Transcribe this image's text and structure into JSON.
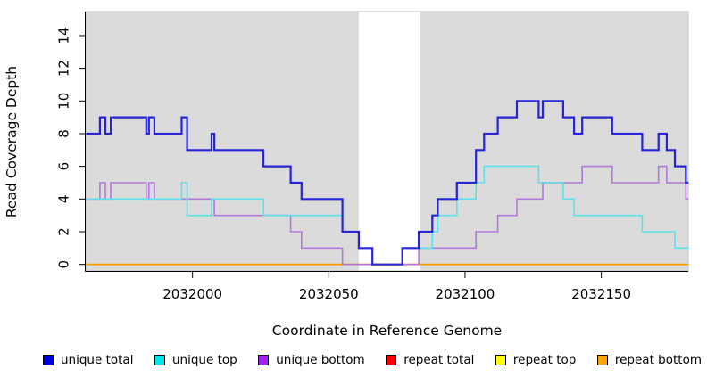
{
  "figure": {
    "title": ""
  },
  "chart_data": {
    "type": "line",
    "subtype": "step-after",
    "title": "",
    "xlabel": "Coordinate in Reference Genome",
    "ylabel": "Read Coverage Depth",
    "xlim": [
      2031960.8,
      2032181.9
    ],
    "ylim": [
      -0.4,
      15.47
    ],
    "x_ticks": [
      2032000,
      2032050,
      2032100,
      2032150
    ],
    "y_ticks": [
      0,
      2,
      4,
      6,
      8,
      10,
      12,
      14
    ],
    "x_end": 2032182,
    "grid": false,
    "legend_position": "bottom",
    "plot_bg": "#dbdbdb",
    "gap_region": {
      "x0": 2032061,
      "x1": 2032083.6,
      "color": "#ffffff",
      "meaning": "no-coverage gap band"
    },
    "draw_order": [
      "repeat_total",
      "repeat_top",
      "repeat_bottom",
      "unique_bottom",
      "unique_top",
      "unique_total"
    ],
    "series": [
      {
        "id": "unique_total",
        "name": "unique total",
        "color": "#2626d8",
        "legend_color": "#0000e0",
        "line_width": 2.2,
        "steps": [
          [
            2031961,
            8
          ],
          [
            2031966,
            9
          ],
          [
            2031968,
            8
          ],
          [
            2031970,
            9
          ],
          [
            2031983,
            8
          ],
          [
            2031984,
            9
          ],
          [
            2031986,
            8
          ],
          [
            2031996,
            9
          ],
          [
            2031998,
            7
          ],
          [
            2032007,
            8
          ],
          [
            2032008,
            7
          ],
          [
            2032026,
            6
          ],
          [
            2032036,
            5
          ],
          [
            2032040,
            4
          ],
          [
            2032055,
            2
          ],
          [
            2032061,
            1
          ],
          [
            2032066,
            0
          ],
          [
            2032077,
            1
          ],
          [
            2032083,
            2
          ],
          [
            2032088,
            3
          ],
          [
            2032090,
            4
          ],
          [
            2032097,
            5
          ],
          [
            2032104,
            7
          ],
          [
            2032107,
            8
          ],
          [
            2032112,
            9
          ],
          [
            2032119,
            10
          ],
          [
            2032127,
            9
          ],
          [
            2032128.5,
            10
          ],
          [
            2032136,
            9
          ],
          [
            2032140,
            8
          ],
          [
            2032143,
            9
          ],
          [
            2032154,
            8
          ],
          [
            2032165,
            7
          ],
          [
            2032171,
            8
          ],
          [
            2032174,
            7
          ],
          [
            2032177,
            6
          ],
          [
            2032181,
            5
          ]
        ]
      },
      {
        "id": "unique_top",
        "name": "unique top",
        "color": "#5ce0ec",
        "legend_color": "#00e5ee",
        "line_width": 1.6,
        "steps": [
          [
            2031961,
            4
          ],
          [
            2031996,
            5
          ],
          [
            2031998,
            3
          ],
          [
            2032007,
            4
          ],
          [
            2032026,
            3
          ],
          [
            2032055,
            2
          ],
          [
            2032061,
            1
          ],
          [
            2032066,
            0
          ],
          [
            2032077,
            1
          ],
          [
            2032088,
            2
          ],
          [
            2032090,
            3
          ],
          [
            2032097,
            4
          ],
          [
            2032104,
            5
          ],
          [
            2032107,
            6
          ],
          [
            2032127,
            5
          ],
          [
            2032136,
            4
          ],
          [
            2032140,
            3
          ],
          [
            2032165,
            2
          ],
          [
            2032177,
            1
          ]
        ]
      },
      {
        "id": "unique_bottom",
        "name": "unique bottom",
        "color": "#b577dd",
        "legend_color": "#a021f0",
        "line_width": 1.6,
        "steps": [
          [
            2031961,
            4
          ],
          [
            2031966,
            5
          ],
          [
            2031968,
            4
          ],
          [
            2031970,
            5
          ],
          [
            2031983,
            4
          ],
          [
            2031984,
            5
          ],
          [
            2031986,
            4
          ],
          [
            2032008,
            3
          ],
          [
            2032036,
            2
          ],
          [
            2032040,
            1
          ],
          [
            2032055,
            0
          ],
          [
            2032083,
            1
          ],
          [
            2032104,
            2
          ],
          [
            2032112,
            3
          ],
          [
            2032119,
            4
          ],
          [
            2032128.5,
            5
          ],
          [
            2032143,
            6
          ],
          [
            2032154,
            5
          ],
          [
            2032171,
            6
          ],
          [
            2032174,
            5
          ],
          [
            2032181,
            4
          ]
        ]
      },
      {
        "id": "repeat_total",
        "name": "repeat total",
        "color": "#d42222",
        "legend_color": "#fb0000",
        "line_width": 1.5,
        "steps": [
          [
            2031961,
            0
          ]
        ]
      },
      {
        "id": "repeat_top",
        "name": "repeat top",
        "color": "#f5f500",
        "legend_color": "#ffff00",
        "line_width": 1.5,
        "steps": [
          [
            2031961,
            0
          ]
        ]
      },
      {
        "id": "repeat_bottom",
        "name": "repeat bottom",
        "color": "#ff9d00",
        "legend_color": "#ffa305",
        "line_width": 1.8,
        "steps": [
          [
            2031961,
            0
          ]
        ]
      }
    ]
  }
}
